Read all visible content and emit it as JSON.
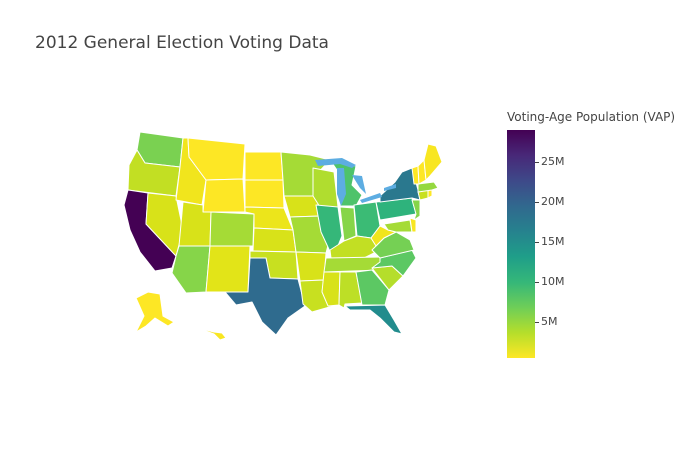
{
  "title": "2012 General Election Voting Data",
  "colorbar": {
    "title": "Voting-Age Population (VAP)",
    "ticks": [
      {
        "label": "25M",
        "value": 25000000
      },
      {
        "label": "20M",
        "value": 20000000
      },
      {
        "label": "15M",
        "value": 15000000
      },
      {
        "label": "10M",
        "value": 10000000
      },
      {
        "label": "5M",
        "value": 5000000
      }
    ],
    "range": [
      500000,
      29000000
    ],
    "colorscale": [
      "#fde725",
      "#b5de2b",
      "#6ece58",
      "#35b779",
      "#1f9e89",
      "#26828e",
      "#31688e",
      "#3e4989",
      "#482878",
      "#440154"
    ]
  },
  "map": {
    "type": "choropleth",
    "scope": "usa",
    "lake_color": "#5dade2",
    "border_color": "#ffffff",
    "states": [
      {
        "id": "WA",
        "color": "#7ad151"
      },
      {
        "id": "OR",
        "color": "#c2df23"
      },
      {
        "id": "CA",
        "color": "#440154"
      },
      {
        "id": "NV",
        "color": "#d8e219"
      },
      {
        "id": "ID",
        "color": "#f1e51d"
      },
      {
        "id": "MT",
        "color": "#fde725"
      },
      {
        "id": "WY",
        "color": "#fde725"
      },
      {
        "id": "UT",
        "color": "#d8e219"
      },
      {
        "id": "AZ",
        "color": "#86d549"
      },
      {
        "id": "CO",
        "color": "#a5db36"
      },
      {
        "id": "NM",
        "color": "#e2e418"
      },
      {
        "id": "ND",
        "color": "#fde725"
      },
      {
        "id": "SD",
        "color": "#fde725"
      },
      {
        "id": "NE",
        "color": "#ece51b"
      },
      {
        "id": "KS",
        "color": "#d8e219"
      },
      {
        "id": "OK",
        "color": "#c8e020"
      },
      {
        "id": "TX",
        "color": "#2f6b8e"
      },
      {
        "id": "MN",
        "color": "#a5db36"
      },
      {
        "id": "IA",
        "color": "#d8e219"
      },
      {
        "id": "MO",
        "color": "#a5db36"
      },
      {
        "id": "AR",
        "color": "#d8e219"
      },
      {
        "id": "LA",
        "color": "#c8e020"
      },
      {
        "id": "WI",
        "color": "#b0dd2f"
      },
      {
        "id": "IL",
        "color": "#35b779"
      },
      {
        "id": "MI",
        "color": "#4ec36b"
      },
      {
        "id": "IN",
        "color": "#86d549"
      },
      {
        "id": "OH",
        "color": "#3bbb75"
      },
      {
        "id": "KY",
        "color": "#c2df23"
      },
      {
        "id": "TN",
        "color": "#a5db36"
      },
      {
        "id": "MS",
        "color": "#d8e219"
      },
      {
        "id": "AL",
        "color": "#bddf26"
      },
      {
        "id": "GA",
        "color": "#5cc863"
      },
      {
        "id": "FL",
        "color": "#228c8d"
      },
      {
        "id": "SC",
        "color": "#b5de2b"
      },
      {
        "id": "NC",
        "color": "#5cc863"
      },
      {
        "id": "VA",
        "color": "#75d054"
      },
      {
        "id": "WV",
        "color": "#f1e51d"
      },
      {
        "id": "PA",
        "color": "#2eb37c"
      },
      {
        "id": "NY",
        "color": "#2a788e"
      },
      {
        "id": "NJ",
        "color": "#86d549"
      },
      {
        "id": "MD",
        "color": "#a5db36"
      },
      {
        "id": "DE",
        "color": "#f8e621"
      },
      {
        "id": "CT",
        "color": "#c8e020"
      },
      {
        "id": "RI",
        "color": "#fde725"
      },
      {
        "id": "MA",
        "color": "#95d840"
      },
      {
        "id": "VT",
        "color": "#fde725"
      },
      {
        "id": "NH",
        "color": "#fde725"
      },
      {
        "id": "ME",
        "color": "#f8e621"
      },
      {
        "id": "AK",
        "color": "#fde725"
      },
      {
        "id": "HI",
        "color": "#f8e621"
      }
    ]
  }
}
